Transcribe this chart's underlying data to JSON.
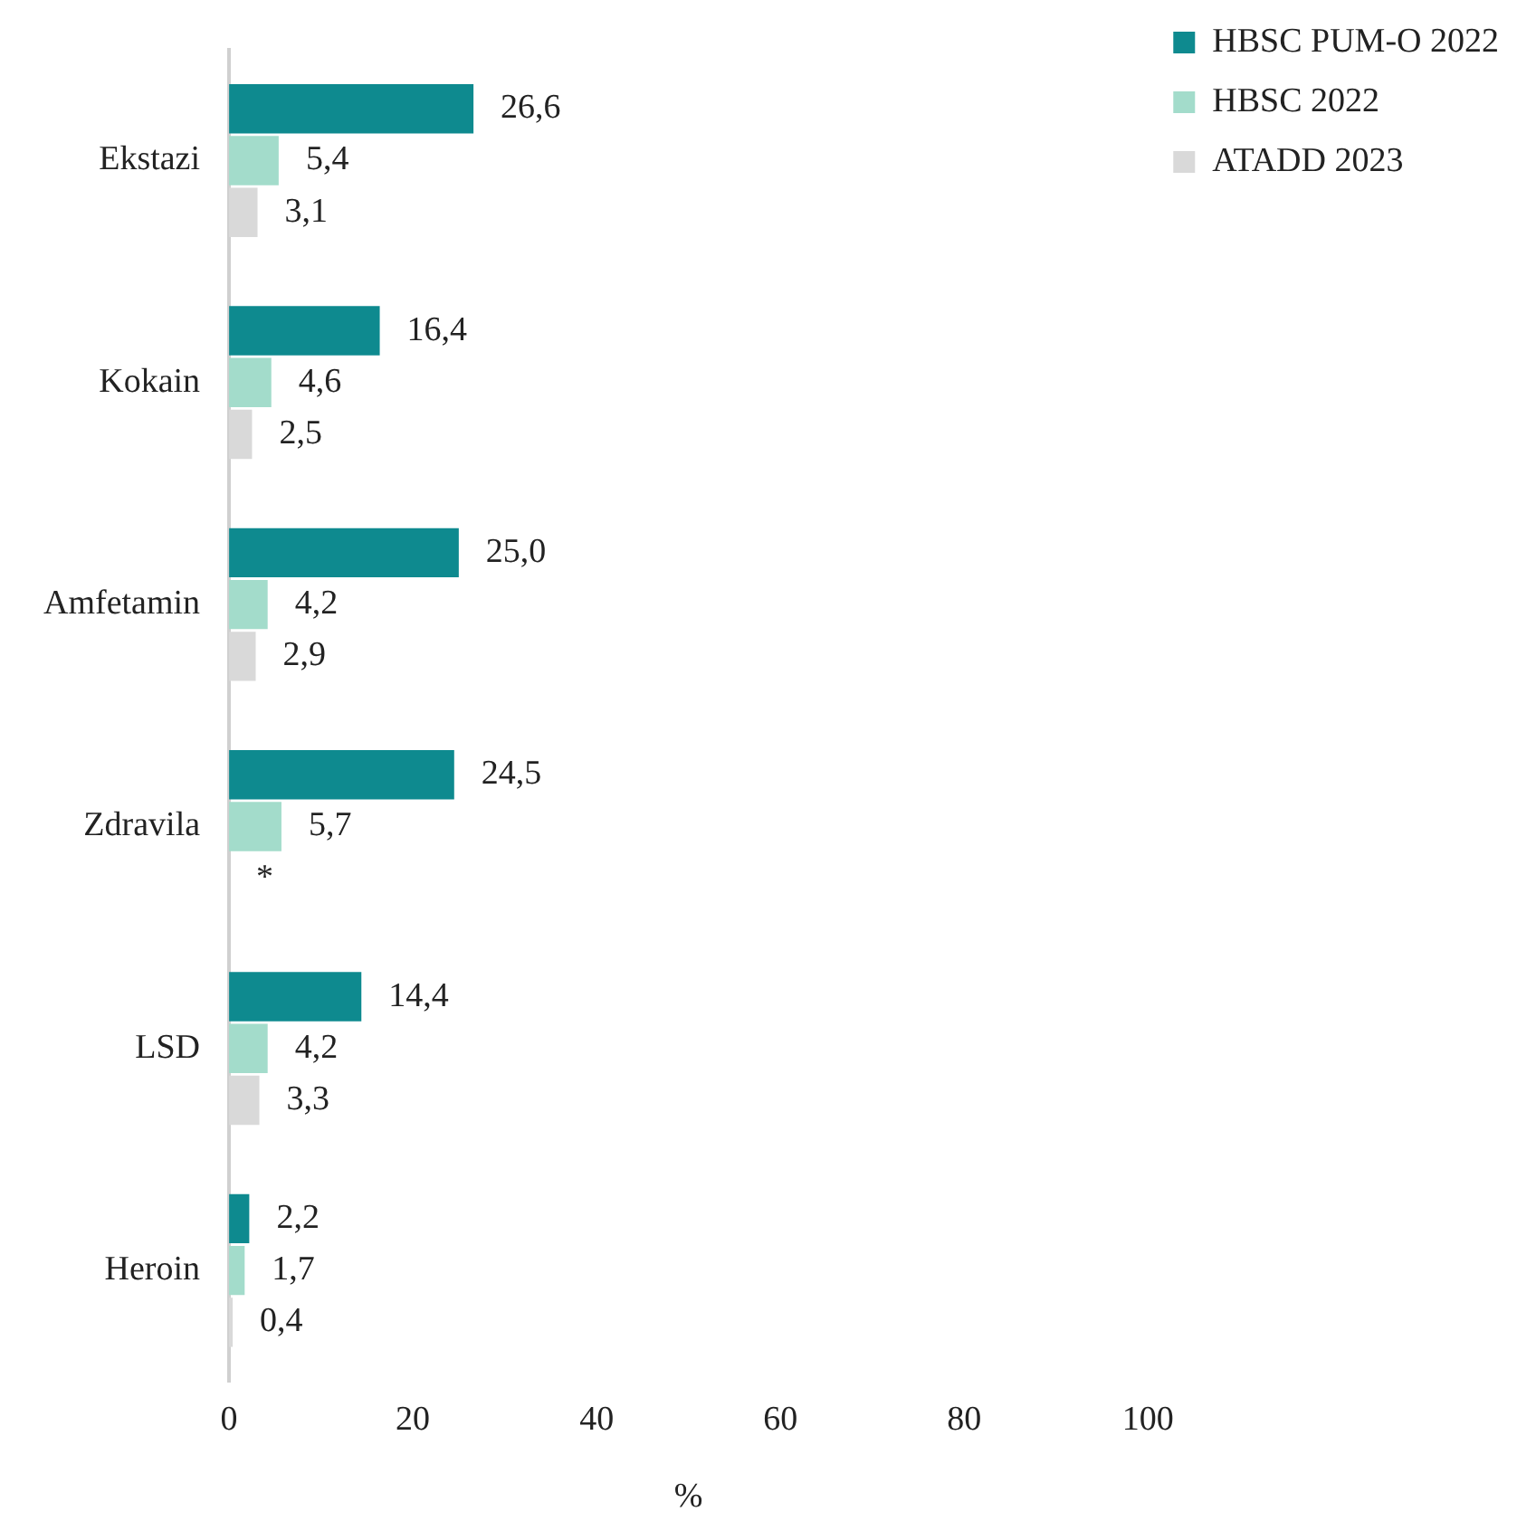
{
  "chart_data": {
    "type": "bar",
    "orientation": "horizontal",
    "xlabel": "%",
    "categories": [
      "Ekstazi",
      "Kokain",
      "Amfetamin",
      "Zdravila",
      "LSD",
      "Heroin"
    ],
    "series": [
      {
        "name": "HBSC PUM-O 2022",
        "color": "#0e8a8f",
        "values": [
          26.6,
          16.4,
          25.0,
          24.5,
          14.4,
          2.2
        ],
        "value_labels": [
          "26,6",
          "16,4",
          "25,0",
          "24,5",
          "14,4",
          "2,2"
        ]
      },
      {
        "name": "HBSC 2022",
        "color": "#a3dccb",
        "values": [
          5.4,
          4.6,
          4.2,
          5.7,
          4.2,
          1.7
        ],
        "value_labels": [
          "5,4",
          "4,6",
          "4,2",
          "5,7",
          "4,2",
          "1,7"
        ]
      },
      {
        "name": "ATADD 2023",
        "color": "#d9d9d9",
        "values": [
          3.1,
          2.5,
          2.9,
          null,
          3.3,
          0.4
        ],
        "value_labels": [
          "3,1",
          "2,5",
          "2,9",
          "*",
          "3,3",
          "0,4"
        ]
      }
    ],
    "xlim": [
      0,
      100
    ],
    "xticks": [
      0,
      20,
      40,
      60,
      80,
      100
    ],
    "grid": false,
    "legend": "top right"
  }
}
